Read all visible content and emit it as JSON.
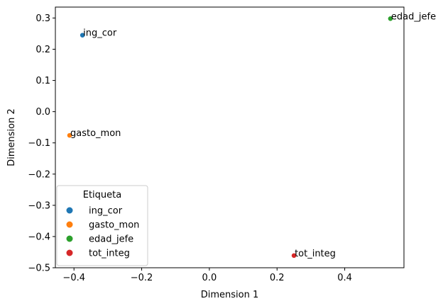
{
  "chart_data": {
    "type": "scatter",
    "xlabel": "Dimension 1",
    "ylabel": "Dimension 2",
    "xlim": [
      -0.455,
      0.575
    ],
    "ylim": [
      -0.5,
      0.335
    ],
    "xticks": [
      -0.4,
      -0.2,
      0.0,
      0.2,
      0.4
    ],
    "xtick_labels": [
      "−0.4",
      "−0.2",
      "0.0",
      "0.2",
      "0.4"
    ],
    "yticks": [
      -0.5,
      -0.4,
      -0.3,
      -0.2,
      -0.1,
      0.0,
      0.1,
      0.2,
      0.3
    ],
    "ytick_labels": [
      "−0.5",
      "−0.4",
      "−0.3",
      "−0.2",
      "−0.1",
      "0.0",
      "0.1",
      "0.2",
      "0.3"
    ],
    "grid": false,
    "legend": {
      "title": "Etiqueta",
      "placement": "lower-left"
    },
    "points": [
      {
        "label": "ing_cor",
        "x": -0.375,
        "y": 0.245,
        "color": "#1f77b4"
      },
      {
        "label": "gasto_mon",
        "x": -0.413,
        "y": -0.076,
        "color": "#ff7f0e"
      },
      {
        "label": "edad_jefe",
        "x": 0.535,
        "y": 0.298,
        "color": "#2ca02c"
      },
      {
        "label": "tot_integ",
        "x": 0.25,
        "y": -0.461,
        "color": "#d62728"
      }
    ]
  }
}
